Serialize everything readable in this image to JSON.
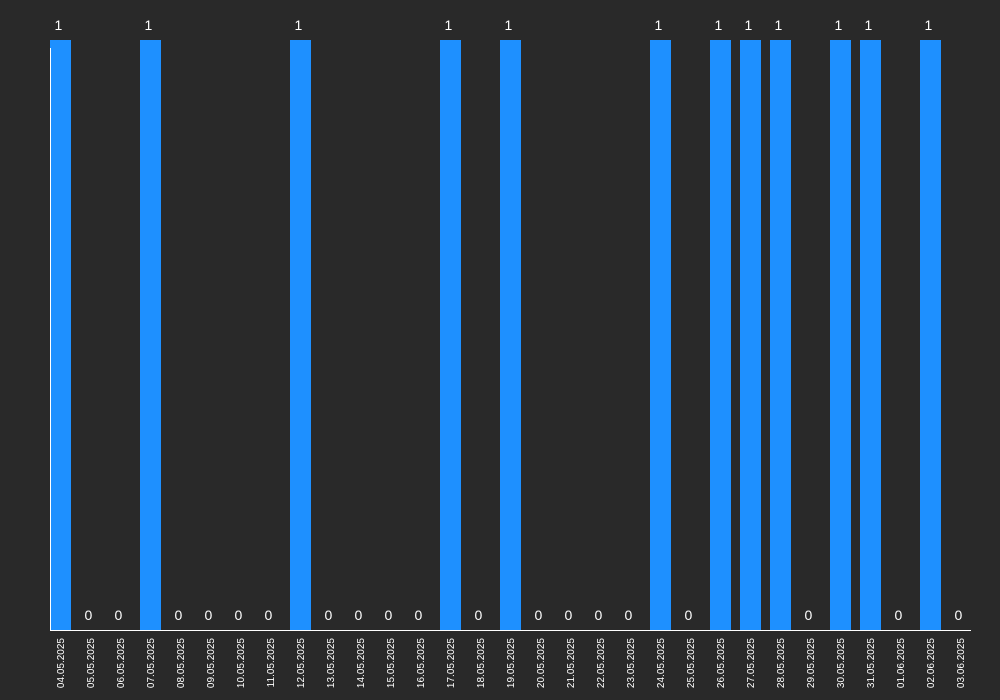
{
  "chart_data": {
    "type": "bar",
    "categories": [
      "04.05.2025",
      "05.05.2025",
      "06.05.2025",
      "07.05.2025",
      "08.05.2025",
      "09.05.2025",
      "10.05.2025",
      "11.05.2025",
      "12.05.2025",
      "13.05.2025",
      "14.05.2025",
      "15.05.2025",
      "16.05.2025",
      "17.05.2025",
      "18.05.2025",
      "19.05.2025",
      "20.05.2025",
      "21.05.2025",
      "22.05.2025",
      "23.05.2025",
      "24.05.2025",
      "25.05.2025",
      "26.05.2025",
      "27.05.2025",
      "28.05.2025",
      "29.05.2025",
      "30.05.2025",
      "31.05.2025",
      "01.06.2025",
      "02.06.2025",
      "03.06.2025"
    ],
    "values": [
      1,
      0,
      0,
      1,
      0,
      0,
      0,
      0,
      1,
      0,
      0,
      0,
      0,
      1,
      0,
      1,
      0,
      0,
      0,
      0,
      1,
      0,
      1,
      1,
      1,
      0,
      1,
      1,
      0,
      1,
      0
    ],
    "title": "",
    "xlabel": "",
    "ylabel": "",
    "ylim": [
      0,
      1
    ],
    "grid": false,
    "data_labels": true,
    "colors": {
      "bar": "#1e90ff",
      "background": "#292929",
      "axis": "#ffffff",
      "text": "#ffffff"
    }
  }
}
